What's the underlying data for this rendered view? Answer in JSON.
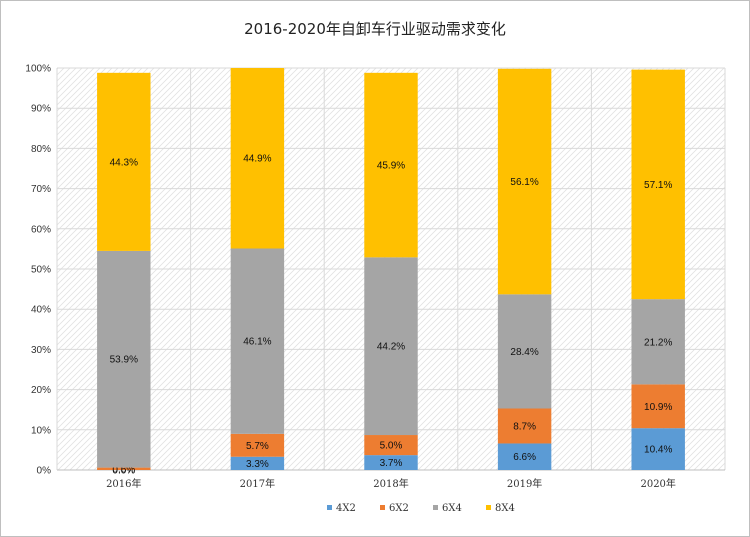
{
  "chart_data": {
    "type": "bar",
    "stacked": true,
    "title": "2016-2020年自卸车行业驱动需求变化",
    "categories": [
      "2016年",
      "2017年",
      "2018年",
      "2019年",
      "2020年"
    ],
    "y_ticks": [
      "0%",
      "10%",
      "20%",
      "30%",
      "40%",
      "50%",
      "60%",
      "70%",
      "80%",
      "90%",
      "100%"
    ],
    "ylim": [
      0,
      100
    ],
    "grid": true,
    "legend_position": "bottom",
    "series": [
      {
        "name": "4X2",
        "color": "#5b9bd5",
        "values": [
          0.0,
          3.3,
          3.7,
          6.6,
          10.4
        ],
        "labels": [
          "0.0%",
          "3.3%",
          "3.7%",
          "6.6%",
          "10.4%"
        ]
      },
      {
        "name": "6X2",
        "color": "#ed7d31",
        "values": [
          0.6,
          5.7,
          5.0,
          8.7,
          10.9
        ],
        "labels": [
          "0.6%",
          "5.7%",
          "5.0%",
          "8.7%",
          "10.9%"
        ]
      },
      {
        "name": "6X4",
        "color": "#a5a5a5",
        "values": [
          53.9,
          46.1,
          44.2,
          28.4,
          21.2
        ],
        "labels": [
          "53.9%",
          "46.1%",
          "44.2%",
          "28.4%",
          "21.2%"
        ]
      },
      {
        "name": "8X4",
        "color": "#ffc000",
        "values": [
          44.3,
          44.9,
          45.9,
          56.1,
          57.1
        ],
        "labels": [
          "44.3%",
          "44.9%",
          "45.9%",
          "56.1%",
          "57.1%"
        ]
      }
    ]
  }
}
